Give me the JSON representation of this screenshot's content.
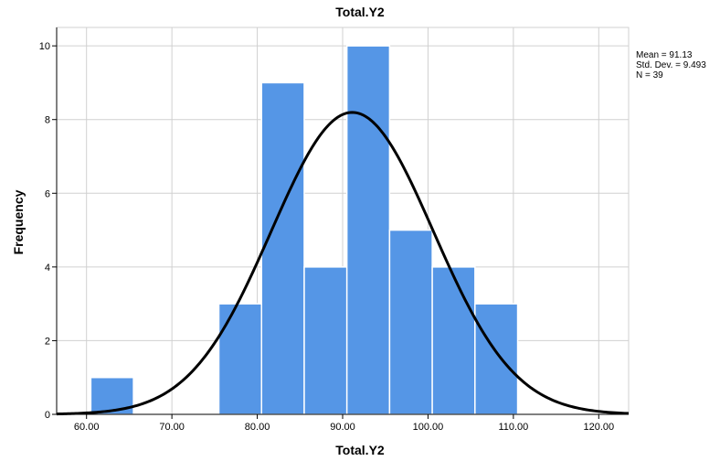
{
  "chart_data": {
    "type": "bar",
    "title": "Total.Y2",
    "xlabel": "Total.Y2",
    "ylabel": "Frequency",
    "bins": [
      {
        "from": 60.5,
        "to": 65.5,
        "count": 1
      },
      {
        "from": 75.5,
        "to": 80.5,
        "count": 3
      },
      {
        "from": 80.5,
        "to": 85.5,
        "count": 9
      },
      {
        "from": 85.5,
        "to": 90.5,
        "count": 4
      },
      {
        "from": 90.5,
        "to": 95.5,
        "count": 10
      },
      {
        "from": 95.5,
        "to": 100.5,
        "count": 5
      },
      {
        "from": 100.5,
        "to": 105.5,
        "count": 4
      },
      {
        "from": 105.5,
        "to": 110.5,
        "count": 3
      }
    ],
    "normal_curve": {
      "mean": 91.13,
      "sd": 9.493,
      "n": 39,
      "bin_width": 5
    },
    "xlim": [
      56.5,
      123.5
    ],
    "ylim": [
      0,
      10.5
    ],
    "x_ticks": [
      60,
      70,
      80,
      90,
      100,
      110,
      120
    ],
    "x_tick_labels": [
      "60.00",
      "70.00",
      "80.00",
      "90.00",
      "100.00",
      "110.00",
      "120.00"
    ],
    "y_ticks": [
      0,
      2,
      4,
      6,
      8,
      10
    ],
    "y_tick_labels": [
      "0",
      "2",
      "4",
      "6",
      "8",
      "10"
    ],
    "grid": true,
    "legend_position": "top-right",
    "stats_text": {
      "mean": "Mean = 91.13",
      "sd": "Std. Dev. = 9.493",
      "n": "N = 39"
    },
    "colors": {
      "bar": "#5596e6",
      "bar_edge": "#ffffff",
      "curve": "#000000",
      "grid": "#d0d0d0",
      "axis": "#000000"
    }
  }
}
